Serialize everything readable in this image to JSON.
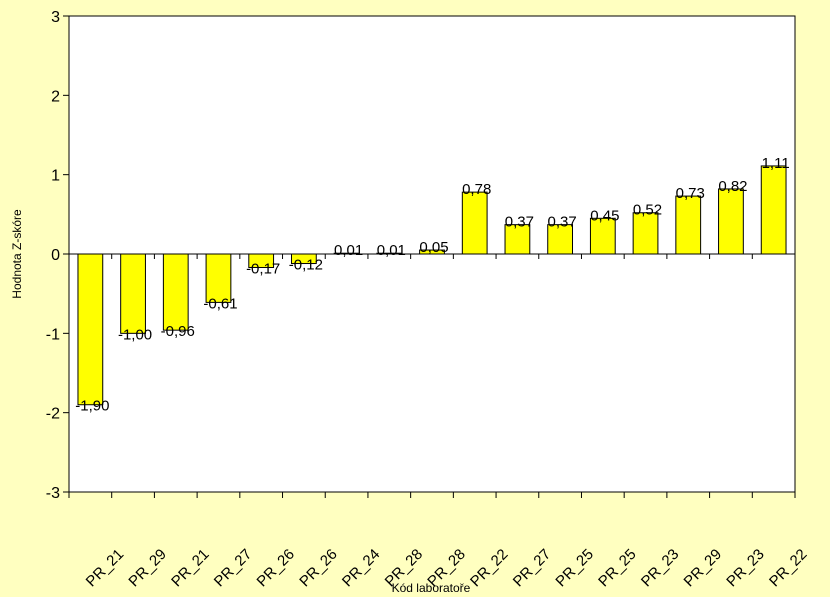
{
  "chart_data": {
    "type": "bar",
    "categories": [
      "PR_21",
      "PR_29",
      "PR_21",
      "PR_27",
      "PR_26",
      "PR_26",
      "PR_24",
      "PR_28",
      "PR_28",
      "PR_22",
      "PR_27",
      "PR_25",
      "PR_25",
      "PR_23",
      "PR_29",
      "PR_23",
      "PR_22"
    ],
    "values": [
      -1.9,
      -1.0,
      -0.96,
      -0.61,
      -0.17,
      -0.12,
      0.01,
      0.01,
      0.05,
      0.78,
      0.37,
      0.37,
      0.45,
      0.52,
      0.73,
      0.82,
      1.11
    ],
    "data_labels": [
      "-1,90",
      "-1,00",
      "-0,96",
      "-0,61",
      "-0,17",
      "-0,12",
      "0,01",
      "0,01",
      "0,05",
      "0,78",
      "0,37",
      "0,37",
      "0,45",
      "0,52",
      "0,73",
      "0,82",
      "1,11"
    ],
    "xlabel": "Kód laboratoře",
    "ylabel": "Hodnota Z-skóre",
    "ylim": [
      -3,
      3
    ],
    "yticks": [
      -3,
      -2,
      -1,
      0,
      1,
      2,
      3
    ],
    "ytick_labels": [
      "-3",
      "-2",
      "-1",
      "0",
      "1",
      "2",
      "3"
    ],
    "grid": false,
    "legend": "none",
    "colors": {
      "bar_fill": "#ffff00",
      "bar_stroke": "#000000",
      "plot_bg": "#ffffff",
      "page_bg": "#ffffc0"
    }
  }
}
